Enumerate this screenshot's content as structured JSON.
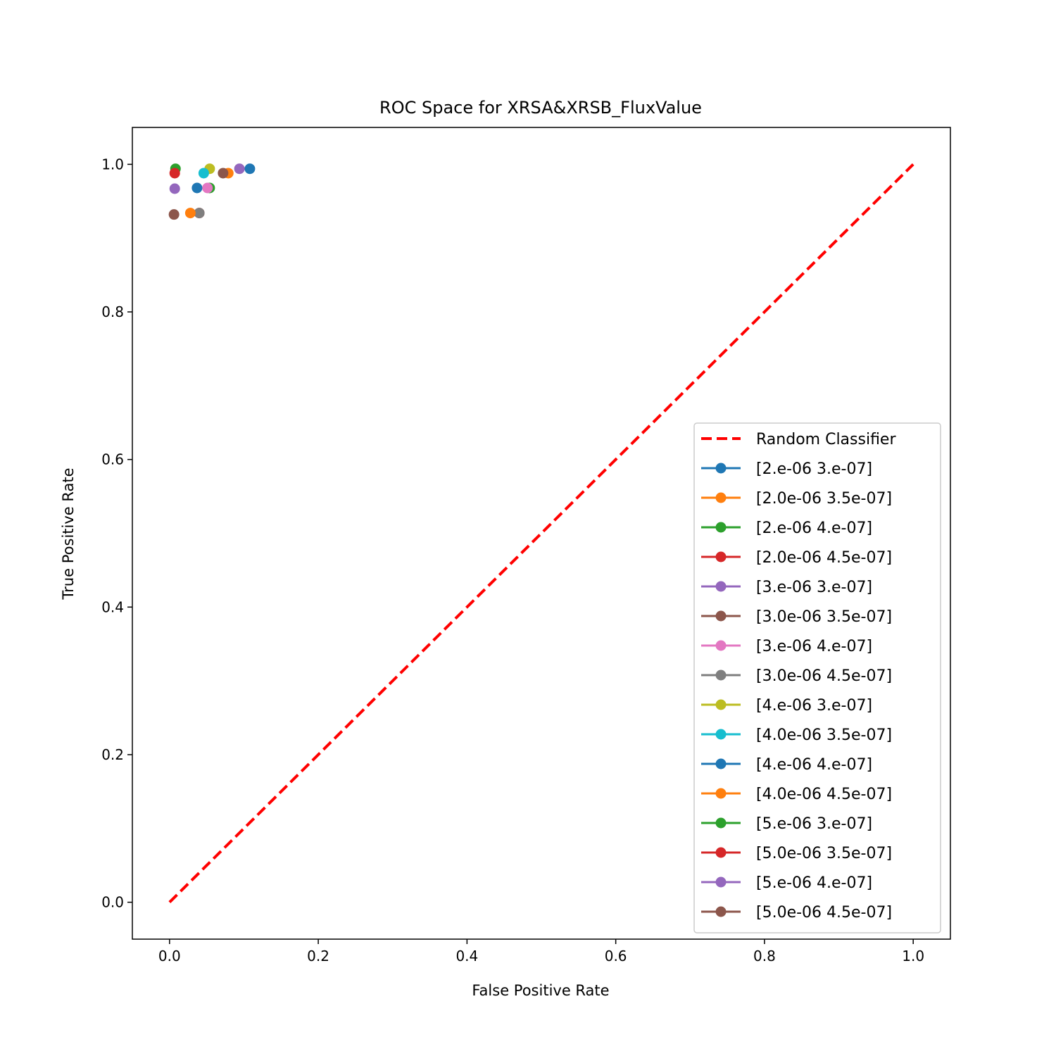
{
  "chart_data": {
    "type": "scatter",
    "title": "ROC Space for XRSA&XRSB_FluxValue",
    "xlabel": "False Positive Rate",
    "ylabel": "True Positive Rate",
    "xlim": [
      -0.05,
      1.05
    ],
    "ylim": [
      -0.05,
      1.05
    ],
    "xticks": [
      "0.0",
      "0.2",
      "0.4",
      "0.6",
      "0.8",
      "1.0"
    ],
    "yticks": [
      "0.0",
      "0.2",
      "0.4",
      "0.6",
      "0.8",
      "1.0"
    ],
    "grid": false,
    "legend_position": "lower right",
    "reference_line": {
      "name": "Random Classifier",
      "x": [
        0,
        1
      ],
      "y": [
        0,
        1
      ],
      "color": "#ff0000",
      "style": "dashed"
    },
    "series": [
      {
        "name": "[2.e-06 3.e-07]",
        "color": "#1f77b4",
        "x": 0.108,
        "y": 0.994
      },
      {
        "name": "[2.0e-06 3.5e-07]",
        "color": "#ff7f0e",
        "x": 0.079,
        "y": 0.988
      },
      {
        "name": "[2.e-06 4.e-07]",
        "color": "#2ca02c",
        "x": 0.054,
        "y": 0.968
      },
      {
        "name": "[2.0e-06 4.5e-07]",
        "color": "#d62728",
        "x": 0.04,
        "y": 0.934
      },
      {
        "name": "[3.e-06 3.e-07]",
        "color": "#9467bd",
        "x": 0.094,
        "y": 0.994
      },
      {
        "name": "[3.0e-06 3.5e-07]",
        "color": "#8c564b",
        "x": 0.072,
        "y": 0.988
      },
      {
        "name": "[3.e-06 4.e-07]",
        "color": "#e377c2",
        "x": 0.051,
        "y": 0.968
      },
      {
        "name": "[3.0e-06 4.5e-07]",
        "color": "#7f7f7f",
        "x": 0.04,
        "y": 0.934
      },
      {
        "name": "[4.e-06 3.e-07]",
        "color": "#bcbd22",
        "x": 0.054,
        "y": 0.994
      },
      {
        "name": "[4.0e-06 3.5e-07]",
        "color": "#17becf",
        "x": 0.046,
        "y": 0.988
      },
      {
        "name": "[4.e-06 4.e-07]",
        "color": "#1f77b4",
        "x": 0.037,
        "y": 0.968
      },
      {
        "name": "[4.0e-06 4.5e-07]",
        "color": "#ff7f0e",
        "x": 0.028,
        "y": 0.934
      },
      {
        "name": "[5.e-06 3.e-07]",
        "color": "#2ca02c",
        "x": 0.008,
        "y": 0.994
      },
      {
        "name": "[5.0e-06 3.5e-07]",
        "color": "#d62728",
        "x": 0.007,
        "y": 0.988
      },
      {
        "name": "[5.e-06 4.e-07]",
        "color": "#9467bd",
        "x": 0.007,
        "y": 0.967
      },
      {
        "name": "[5.0e-06 4.5e-07]",
        "color": "#8c564b",
        "x": 0.006,
        "y": 0.932
      }
    ]
  }
}
